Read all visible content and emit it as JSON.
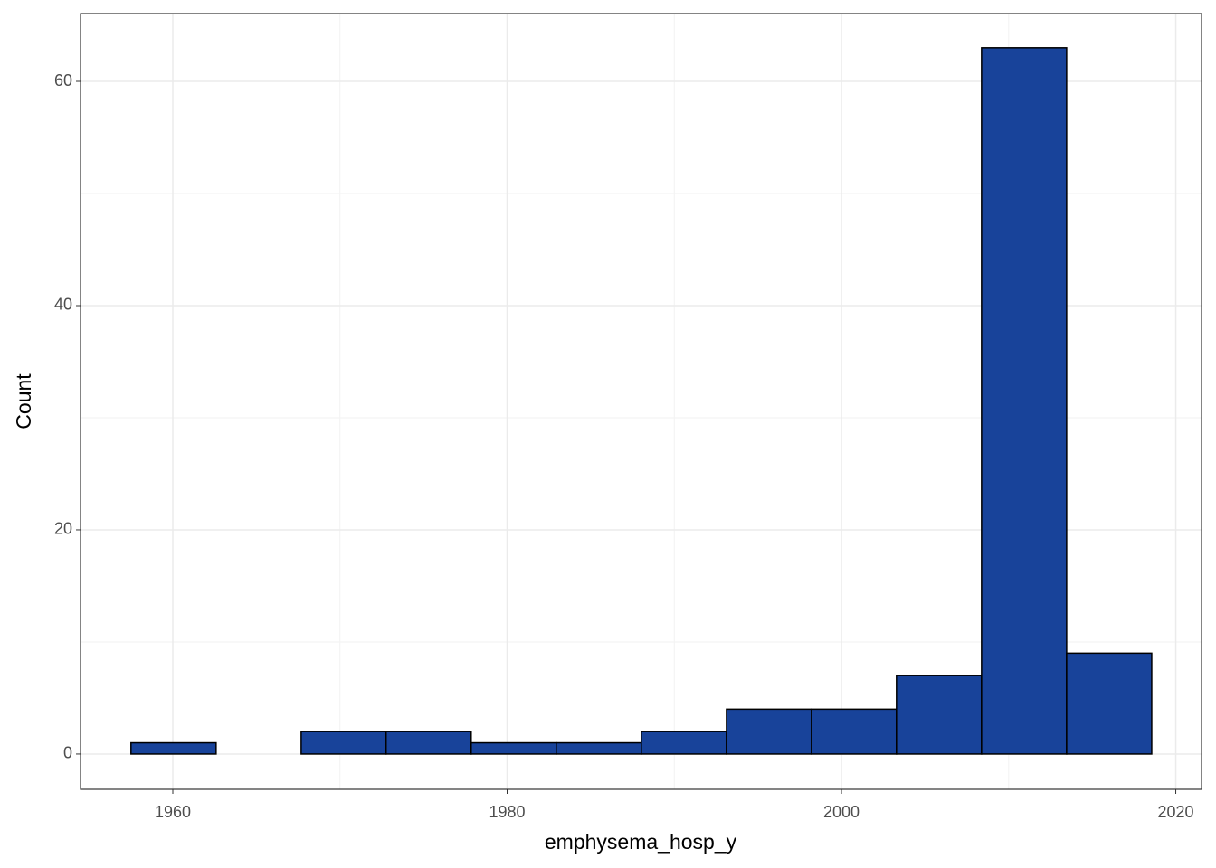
{
  "chart_data": {
    "type": "histogram",
    "x_label": "emphysema_hosp_y",
    "y_label": "Count",
    "bins": [
      1957.5,
      1962.59,
      1967.68,
      1972.76,
      1977.85,
      1982.94,
      1988.03,
      1993.12,
      1998.21,
      2003.29,
      2008.38,
      2013.47,
      2018.56
    ],
    "values": [
      1,
      0,
      2,
      2,
      1,
      1,
      2,
      4,
      4,
      7,
      63,
      9
    ],
    "color": "#18439a",
    "edge_color": "#000000",
    "xlim": [
      1954.48,
      2021.54
    ],
    "xticks": [
      1960,
      1980,
      2000,
      2020
    ],
    "ylim": [
      -3.15,
      66.05
    ],
    "yticks": [
      0,
      20,
      40,
      60
    ],
    "grid": true
  }
}
